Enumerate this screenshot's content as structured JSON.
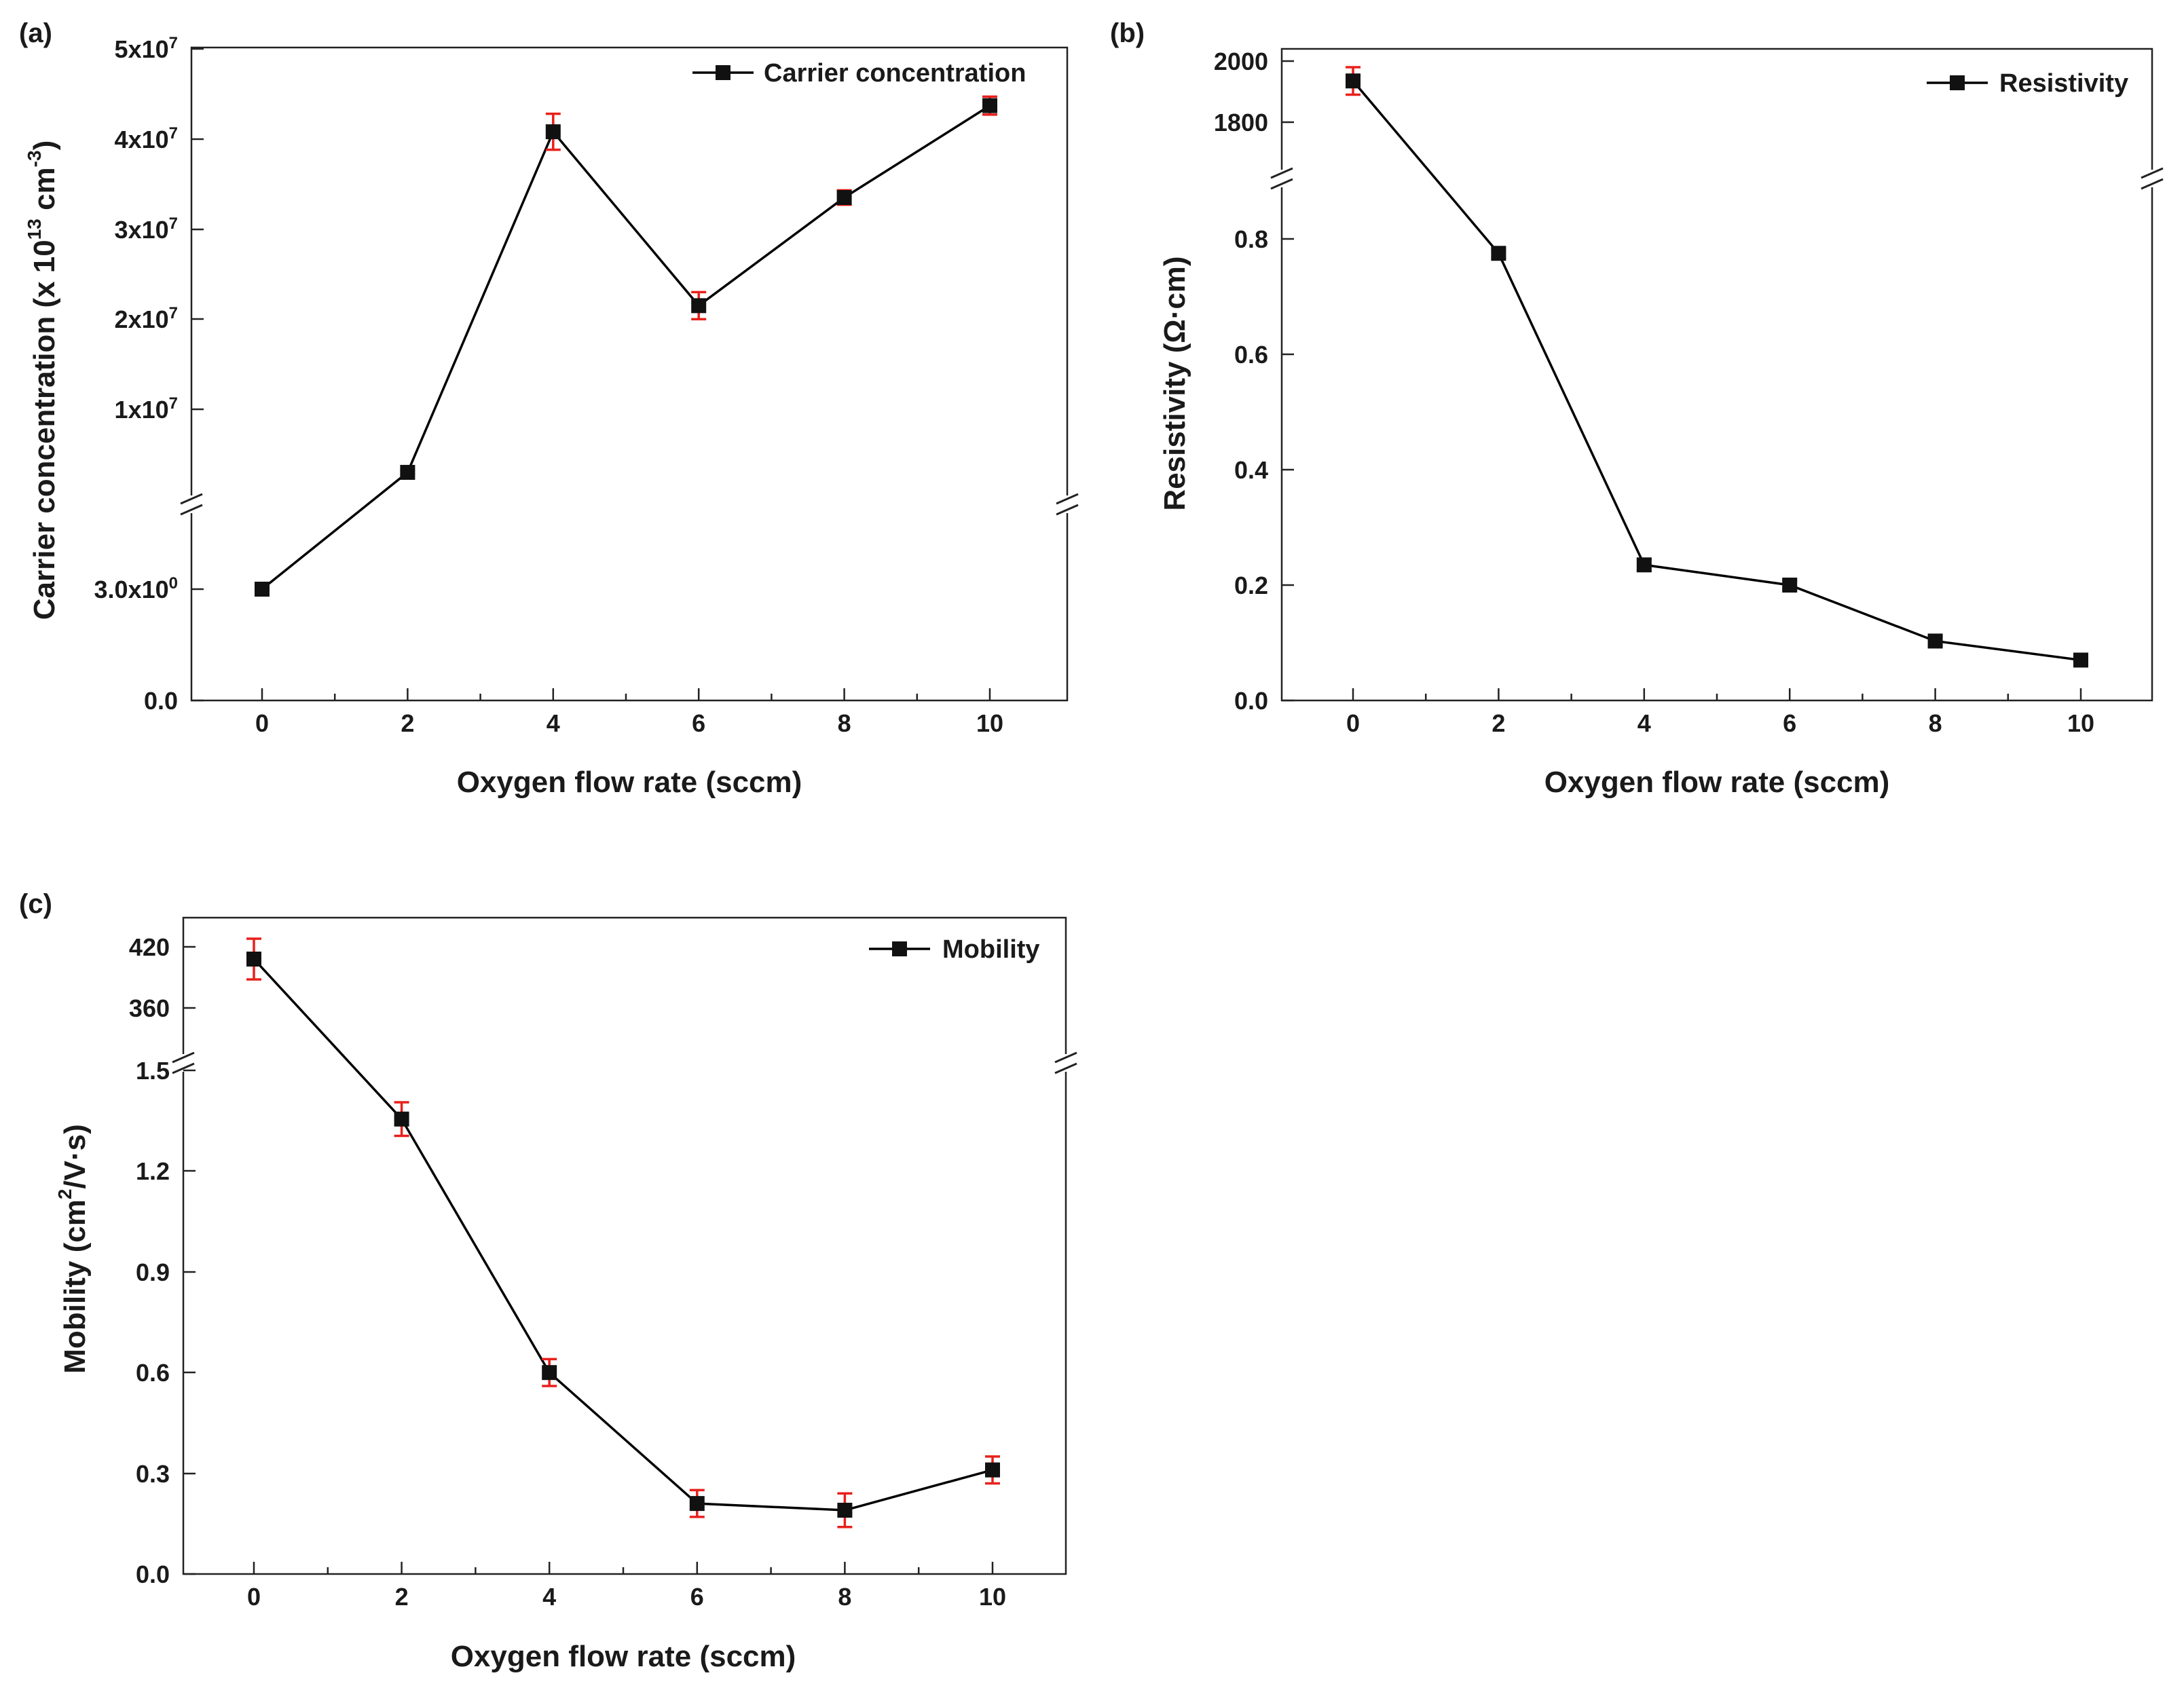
{
  "chart_data": [
    {
      "panel_label": "(a)",
      "type": "line",
      "xlabel": "Oxygen flow rate (sccm)",
      "ylabel": "Carrier concentration (x 10^13 cm^-3)",
      "ylabel_parts": {
        "main": "Carrier concentration (x 10",
        "sup1": "13",
        "mid": " cm",
        "sup2": "-3",
        "end": ")"
      },
      "x_ticks": [
        "0",
        "2",
        "4",
        "6",
        "8",
        "10"
      ],
      "y_ticks_lower": [
        "0.0",
        "3.0x10^0"
      ],
      "y_ticks_upper": [
        "1x10^7",
        "2x10^7",
        "3x10^7",
        "4x10^7",
        "5x10^7"
      ],
      "axis_break": "y",
      "series": [
        {
          "name": "Carrier concentration",
          "x": [
            0,
            2,
            4,
            6,
            8,
            10
          ],
          "y": [
            3.0,
            3000000,
            40800000,
            21500000,
            33500000,
            43700000
          ],
          "yerr": [
            0.15,
            200000,
            2000000,
            1500000,
            800000,
            1000000
          ]
        }
      ]
    },
    {
      "panel_label": "(b)",
      "type": "line",
      "xlabel": "Oxygen flow rate (sccm)",
      "ylabel": "Resistivity (Ω·cm)",
      "x_ticks": [
        "0",
        "2",
        "4",
        "6",
        "8",
        "10"
      ],
      "y_ticks_lower": [
        "0.0",
        "0.2",
        "0.4",
        "0.6",
        "0.8"
      ],
      "y_ticks_upper": [
        "1800",
        "2000"
      ],
      "axis_break": "y",
      "series": [
        {
          "name": "Resistivity",
          "x": [
            0,
            2,
            4,
            6,
            8,
            10
          ],
          "y": [
            1935,
            0.775,
            0.235,
            0.2,
            0.103,
            0.07
          ],
          "yerr": [
            45,
            0.008,
            0.01,
            0.008,
            0.008,
            0.006
          ]
        }
      ]
    },
    {
      "panel_label": "(c)",
      "type": "line",
      "xlabel": "Oxygen flow rate (sccm)",
      "ylabel": "Mobility (cm^2/V·s)",
      "ylabel_parts": {
        "main": "Mobility (cm",
        "sup1": "2",
        "end": "/V·s)"
      },
      "x_ticks": [
        "0",
        "2",
        "4",
        "6",
        "8",
        "10"
      ],
      "y_ticks_lower": [
        "0.0",
        "0.3",
        "0.6",
        "0.9",
        "1.2",
        "1.5"
      ],
      "y_ticks_upper": [
        "360",
        "420"
      ],
      "axis_break": "y",
      "series": [
        {
          "name": "Mobility",
          "x": [
            0,
            2,
            4,
            6,
            8,
            10
          ],
          "y": [
            408,
            1.355,
            0.6,
            0.21,
            0.19,
            0.31
          ],
          "yerr": [
            20,
            0.05,
            0.04,
            0.04,
            0.05,
            0.04
          ]
        }
      ]
    }
  ]
}
